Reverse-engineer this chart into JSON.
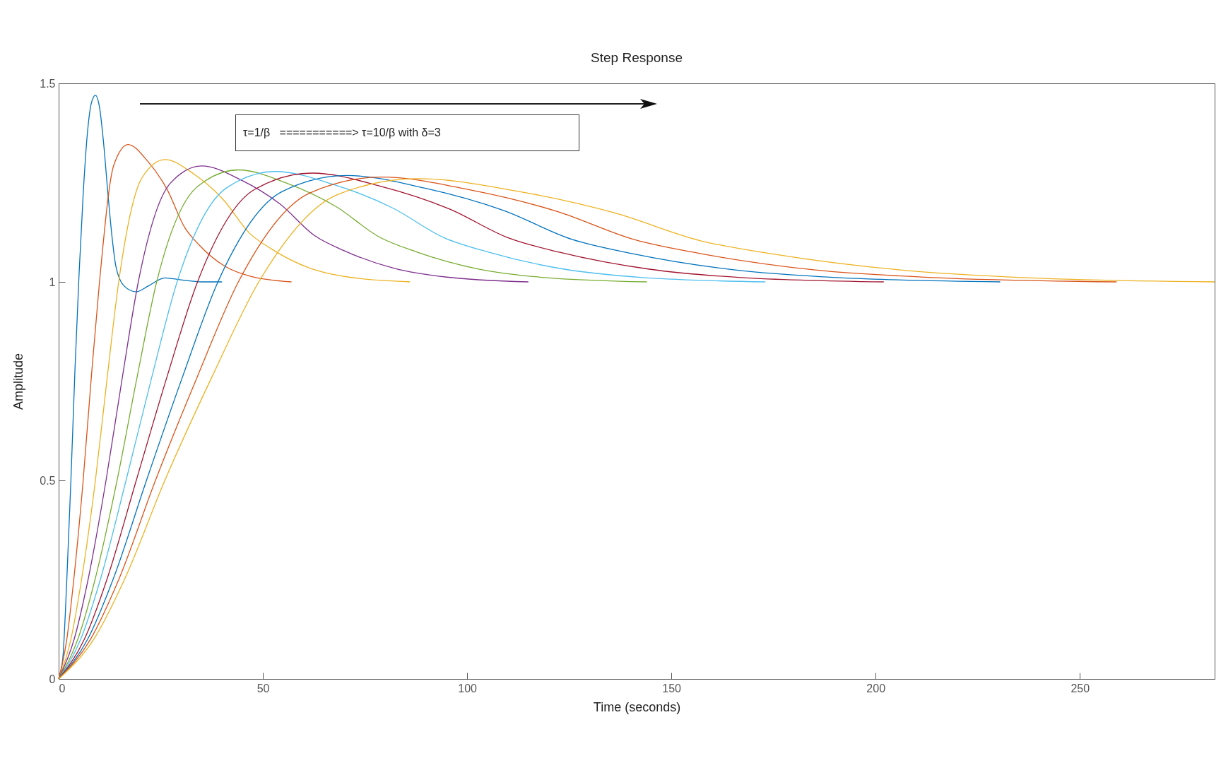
{
  "chart_data": {
    "type": "line",
    "title": "Step Response",
    "xlabel": "Time (seconds)",
    "ylabel": "Amplitude",
    "annotations": [
      "τ=1/β   ===========> τ=10/β with δ=3"
    ],
    "xlim": [
      0,
      283
    ],
    "xticks": [
      0,
      50,
      100,
      150,
      200,
      250
    ],
    "ylim": [
      0,
      1.5
    ],
    "yticks": [
      0,
      0.5,
      1,
      1.5
    ],
    "grid": false,
    "legend": false,
    "marker": "none",
    "line_style": "solid",
    "series": [
      {
        "color": "#0072bd",
        "x": [
          0,
          1,
          2,
          3,
          4,
          5,
          6,
          7,
          8,
          9,
          10,
          11,
          12,
          13,
          14,
          16,
          19,
          22,
          26,
          30,
          35,
          40
        ],
        "values": [
          0,
          0.05,
          0.25,
          0.5,
          0.78,
          1.02,
          1.22,
          1.37,
          1.45,
          1.47,
          1.44,
          1.35,
          1.23,
          1.12,
          1.04,
          0.99,
          0.975,
          0.99,
          1.01,
          1.005,
          1,
          1
        ]
      },
      {
        "color": "#d95319",
        "x": [
          0,
          2,
          3.7,
          6,
          8,
          10,
          13.5,
          17,
          21.8,
          26.6,
          30.8,
          34.4,
          40.6,
          47,
          57
        ],
        "values": [
          0,
          0.1,
          0.25,
          0.5,
          0.76,
          1,
          1.294,
          1.346,
          1.304,
          1.232,
          1.138,
          1.093,
          1.04,
          1.014,
          1
        ]
      },
      {
        "color": "#edb120",
        "x": [
          0,
          3,
          5.6,
          9,
          11.9,
          14.7,
          20.4,
          26,
          33.2,
          40.4,
          46.7,
          52.1,
          61.4,
          71,
          86
        ],
        "values": [
          0,
          0.1,
          0.25,
          0.5,
          0.76,
          1,
          1.262,
          1.308,
          1.271,
          1.206,
          1.123,
          1.083,
          1.035,
          1.012,
          1
        ]
      },
      {
        "color": "#7e2f8e",
        "x": [
          0,
          3.8,
          7.2,
          11.6,
          15.6,
          19.5,
          27.3,
          35,
          44.6,
          54.2,
          62.6,
          69.8,
          82.2,
          95,
          115
        ],
        "values": [
          0,
          0.1,
          0.25,
          0.5,
          0.76,
          1,
          1.248,
          1.292,
          1.257,
          1.196,
          1.117,
          1.079,
          1.034,
          1.012,
          1
        ]
      },
      {
        "color": "#77ac30",
        "x": [
          0,
          4.7,
          8.9,
          14.3,
          19.2,
          24,
          34,
          44,
          56,
          68,
          78.5,
          87.5,
          103,
          119,
          144
        ],
        "values": [
          0,
          0.1,
          0.25,
          0.5,
          0.76,
          1,
          1.24,
          1.282,
          1.248,
          1.189,
          1.113,
          1.076,
          1.032,
          1.011,
          1
        ]
      },
      {
        "color": "#4dbeee",
        "x": [
          0,
          5.4,
          10.2,
          16.5,
          22.8,
          29,
          41,
          53,
          67.4,
          81.8,
          94.4,
          105.2,
          123.8,
          143,
          173
        ],
        "values": [
          0,
          0.1,
          0.25,
          0.5,
          0.76,
          1,
          1.236,
          1.278,
          1.245,
          1.186,
          1.111,
          1.075,
          1.032,
          1.011,
          1
        ]
      },
      {
        "color": "#a2142f",
        "x": [
          0,
          6.3,
          11.8,
          19,
          26.5,
          34,
          48,
          62,
          78.8,
          95.6,
          110.3,
          122.9,
          144.6,
          167,
          202
        ],
        "values": [
          0,
          0.1,
          0.25,
          0.5,
          0.76,
          1,
          1.233,
          1.274,
          1.241,
          1.184,
          1.11,
          1.074,
          1.032,
          1.011,
          1
        ]
      },
      {
        "color": "#0072bd",
        "x": [
          0,
          7.1,
          13.3,
          21.5,
          30.3,
          39,
          54.8,
          70.5,
          89.7,
          108.9,
          125.7,
          140.1,
          164.9,
          190.5,
          230.5
        ],
        "values": [
          0,
          0.1,
          0.25,
          0.5,
          0.76,
          1,
          1.228,
          1.268,
          1.236,
          1.18,
          1.107,
          1.072,
          1.031,
          1.011,
          1
        ]
      },
      {
        "color": "#d95319",
        "x": [
          0,
          7.8,
          14.7,
          23.7,
          33.9,
          44,
          61.5,
          79,
          100.6,
          122.2,
          141.1,
          157.3,
          185.2,
          214,
          259
        ],
        "values": [
          0,
          0.1,
          0.25,
          0.5,
          0.76,
          1,
          1.224,
          1.264,
          1.232,
          1.177,
          1.106,
          1.071,
          1.03,
          1.011,
          1
        ]
      },
      {
        "color": "#edb120",
        "x": [
          0,
          8.6,
          16.1,
          26,
          37.5,
          49,
          68.5,
          88,
          112,
          136,
          157,
          175,
          206,
          238,
          283
        ],
        "values": [
          0,
          0.1,
          0.25,
          0.5,
          0.76,
          1,
          1.221,
          1.26,
          1.229,
          1.174,
          1.104,
          1.07,
          1.03,
          1.01,
          1
        ]
      }
    ]
  }
}
